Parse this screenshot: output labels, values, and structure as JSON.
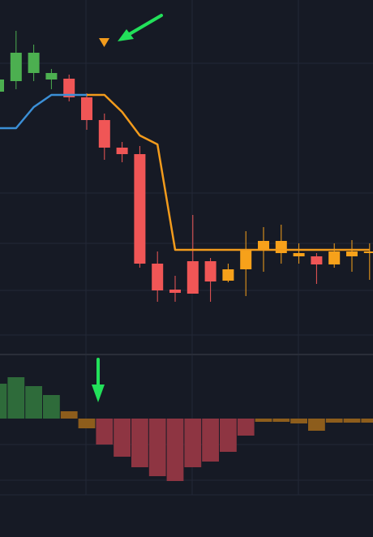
{
  "chart_data": [
    {
      "type": "candlestick",
      "categories": [
        null,
        null,
        null,
        null,
        null,
        null,
        null,
        null,
        null,
        null,
        null,
        null,
        null,
        null,
        null,
        null,
        null,
        null,
        null,
        null,
        null,
        null
      ],
      "open": [
        327,
        340,
        350,
        342,
        343,
        320,
        292,
        258,
        250,
        115,
        83,
        118,
        118,
        94,
        108,
        133,
        143,
        128,
        124,
        114,
        124,
        130
      ],
      "close": [
        342,
        375,
        375,
        350,
        320,
        292,
        258,
        250,
        115,
        82,
        79,
        78,
        93,
        108,
        132,
        143,
        128,
        124,
        114,
        130,
        130,
        130
      ],
      "high": [
        345,
        402,
        385,
        355,
        348,
        325,
        300,
        265,
        260,
        130,
        100,
        175,
        122,
        115,
        155,
        160,
        163,
        140,
        128,
        140,
        144,
        140
      ],
      "low": [
        324,
        330,
        340,
        330,
        315,
        280,
        243,
        240,
        110,
        68,
        68,
        78,
        68,
        92,
        75,
        105,
        115,
        115,
        90,
        110,
        105,
        95
      ],
      "colors": [
        "#4caf50",
        "#4caf50",
        "#4caf50",
        "#4caf50",
        "#f05656",
        "#f05656",
        "#f05656",
        "#f05656",
        "#f05656",
        "#f05656",
        "#f05656",
        "#f05656",
        "#f05656",
        "#f7a11a",
        "#f7a11a",
        "#f7a11a",
        "#f7a11a",
        "#f7a11a",
        "#f05656",
        "#f7a11a",
        "#f7a11a",
        "#f7a11a"
      ],
      "series": [
        {
          "color": "#3b8fd6",
          "values": [
            282,
            282,
            308,
            323,
            323,
            323,
            null,
            null,
            null,
            null,
            null,
            null,
            null,
            null,
            null,
            null,
            null,
            null,
            null,
            null,
            null,
            null
          ]
        },
        {
          "color": "#f29b1c",
          "values": [
            null,
            null,
            null,
            null,
            null,
            323,
            323,
            302,
            273,
            262,
            132,
            132,
            132,
            132,
            132,
            132,
            132,
            132,
            132,
            132,
            132,
            132
          ]
        }
      ],
      "ylim": [
        0,
        440
      ]
    },
    {
      "type": "histogram-bars",
      "categories": [
        null,
        null,
        null,
        null,
        null,
        null,
        null,
        null,
        null,
        null,
        null,
        null,
        null,
        null,
        null,
        null,
        null,
        null,
        null,
        null,
        null,
        null
      ],
      "values": [
        43,
        51,
        40,
        29,
        9,
        -12,
        -32,
        -47,
        -60,
        -71,
        -77,
        -60,
        -53,
        -41,
        -21,
        -4,
        -4,
        -6,
        -15,
        -5,
        -5,
        -5
      ],
      "colors": [
        "#2e6b3a",
        "#2e6b3a",
        "#2e6b3a",
        "#2e6b3a",
        "#8d5d1c",
        "#8d5d1c",
        "#8e3542",
        "#8e3542",
        "#8e3542",
        "#8e3542",
        "#8e3542",
        "#8e3542",
        "#8e3542",
        "#8e3542",
        "#8e3542",
        "#8d5d1c",
        "#8d5d1c",
        "#8d5d1c",
        "#8d5d1c",
        "#8d5d1c",
        "#8d5d1c",
        "#8d5d1c"
      ],
      "ylim": [
        -94,
        78
      ]
    }
  ]
}
